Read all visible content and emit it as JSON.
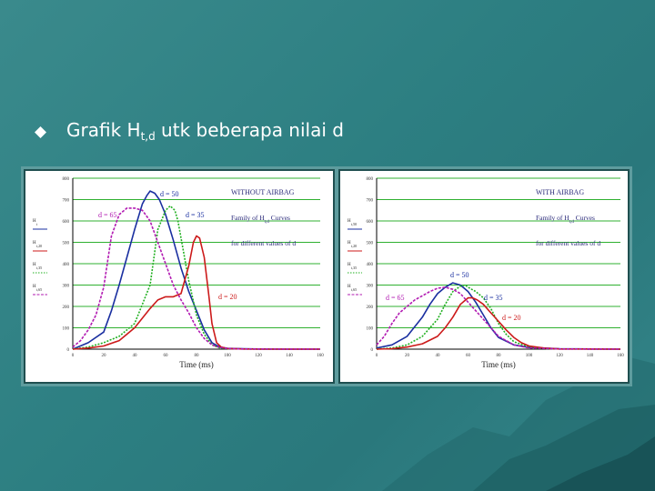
{
  "slide": {
    "heading_prefix": "Grafik H",
    "heading_sub": "t,d",
    "heading_suffix": " utk beberapa nilai d",
    "bullet_icon": "diamond-bullet-icon",
    "bg_color": "#2d7f82"
  },
  "chart_data": [
    {
      "type": "line",
      "title": "WITHOUT AIRBAG",
      "annotation_lines": [
        "Family of H",
        "t,d",
        " Curves",
        "for different values of d"
      ],
      "xlabel": "Time (ms)",
      "ylabel_labels": [
        "H",
        "t",
        "H",
        "t,20",
        "H",
        "t,35",
        "H",
        "t,65"
      ],
      "xlim": [
        0,
        160
      ],
      "ylim": [
        0,
        800
      ],
      "xticks": [
        0,
        20,
        40,
        60,
        80,
        100,
        120,
        140,
        160
      ],
      "yticks": [
        0,
        100,
        200,
        300,
        400,
        500,
        600,
        700,
        800
      ],
      "series": [
        {
          "name": "d = 50",
          "color": "#1a2fa0",
          "style": "solid",
          "x": [
            0,
            10,
            20,
            25,
            30,
            35,
            40,
            45,
            48,
            50,
            53,
            56,
            60,
            65,
            70,
            75,
            80,
            85,
            90,
            95,
            100,
            110,
            120,
            140,
            160
          ],
          "y": [
            0,
            30,
            80,
            180,
            300,
            430,
            560,
            680,
            720,
            740,
            730,
            700,
            630,
            510,
            380,
            270,
            180,
            90,
            30,
            10,
            4,
            2,
            1,
            0,
            0
          ]
        },
        {
          "name": "d = 35",
          "color": "#22b022",
          "style": "dotted",
          "x": [
            0,
            10,
            20,
            30,
            40,
            50,
            55,
            60,
            63,
            66,
            68,
            70,
            72,
            75,
            80,
            85,
            90,
            95,
            100,
            110,
            120,
            160
          ],
          "y": [
            0,
            10,
            30,
            60,
            120,
            300,
            560,
            650,
            670,
            650,
            600,
            520,
            440,
            320,
            160,
            70,
            20,
            6,
            2,
            1,
            0,
            0
          ]
        },
        {
          "name": "d = 20",
          "color": "#cc1a1a",
          "style": "solid",
          "x": [
            0,
            10,
            20,
            30,
            40,
            50,
            55,
            60,
            65,
            70,
            75,
            78,
            80,
            82,
            85,
            88,
            90,
            93,
            96,
            100,
            110,
            120,
            160
          ],
          "y": [
            0,
            5,
            15,
            40,
            100,
            190,
            230,
            245,
            245,
            260,
            390,
            500,
            530,
            520,
            430,
            250,
            120,
            30,
            10,
            3,
            1,
            0,
            0
          ]
        },
        {
          "name": "d = 65",
          "color": "#b21bb2",
          "style": "dashed",
          "x": [
            0,
            5,
            10,
            15,
            20,
            25,
            30,
            35,
            40,
            45,
            50,
            55,
            60,
            65,
            70,
            75,
            80,
            85,
            90,
            95,
            100,
            110,
            160
          ],
          "y": [
            10,
            40,
            90,
            160,
            290,
            530,
            630,
            660,
            660,
            650,
            600,
            500,
            400,
            300,
            230,
            170,
            100,
            50,
            20,
            8,
            3,
            1,
            0
          ]
        }
      ],
      "labels": [
        "d = 50",
        "d = 35",
        "d = 65",
        "d = 20"
      ]
    },
    {
      "type": "line",
      "title": "WITH AIRBAG",
      "annotation_lines": [
        "Family of H",
        "t,d",
        " Curves",
        "for different values of d"
      ],
      "xlabel": "Time (ms)",
      "ylabel_labels": [
        "H",
        "t,50",
        "H",
        "t,20",
        "H",
        "t,35",
        "H",
        "t,65"
      ],
      "xlim": [
        0,
        160
      ],
      "ylim": [
        0,
        800
      ],
      "xticks": [
        0,
        20,
        40,
        60,
        80,
        100,
        120,
        140,
        160
      ],
      "yticks": [
        0,
        100,
        200,
        300,
        400,
        500,
        600,
        700,
        800
      ],
      "series": [
        {
          "name": "d = 50",
          "color": "#1a2fa0",
          "style": "solid",
          "x": [
            0,
            10,
            20,
            30,
            35,
            40,
            45,
            50,
            55,
            60,
            65,
            70,
            75,
            80,
            90,
            100,
            120,
            160
          ],
          "y": [
            5,
            20,
            60,
            150,
            210,
            260,
            290,
            310,
            300,
            270,
            220,
            160,
            100,
            55,
            20,
            8,
            2,
            0
          ]
        },
        {
          "name": "d = 35",
          "color": "#22b022",
          "style": "dotted",
          "x": [
            0,
            10,
            20,
            30,
            40,
            45,
            50,
            55,
            58,
            60,
            65,
            70,
            75,
            80,
            85,
            90,
            100,
            110,
            120,
            160
          ],
          "y": [
            0,
            5,
            20,
            60,
            140,
            210,
            270,
            295,
            300,
            290,
            270,
            240,
            190,
            120,
            70,
            35,
            10,
            3,
            1,
            0
          ]
        },
        {
          "name": "d = 20",
          "color": "#cc1a1a",
          "style": "solid",
          "x": [
            0,
            10,
            20,
            30,
            40,
            45,
            50,
            55,
            60,
            63,
            66,
            70,
            75,
            80,
            85,
            90,
            95,
            100,
            110,
            120,
            160
          ],
          "y": [
            0,
            2,
            10,
            25,
            60,
            100,
            150,
            210,
            240,
            240,
            230,
            210,
            170,
            130,
            90,
            55,
            30,
            15,
            5,
            1,
            0
          ]
        },
        {
          "name": "d = 65",
          "color": "#b21bb2",
          "style": "dashed",
          "x": [
            0,
            5,
            10,
            15,
            20,
            25,
            30,
            35,
            40,
            45,
            50,
            55,
            60,
            65,
            70,
            75,
            80,
            90,
            100,
            120,
            160
          ],
          "y": [
            20,
            60,
            120,
            170,
            200,
            230,
            250,
            270,
            285,
            290,
            280,
            260,
            220,
            180,
            140,
            100,
            60,
            20,
            6,
            1,
            0
          ]
        }
      ],
      "labels": [
        "d = 50",
        "d = 35",
        "d = 65",
        "d = 20"
      ]
    }
  ]
}
